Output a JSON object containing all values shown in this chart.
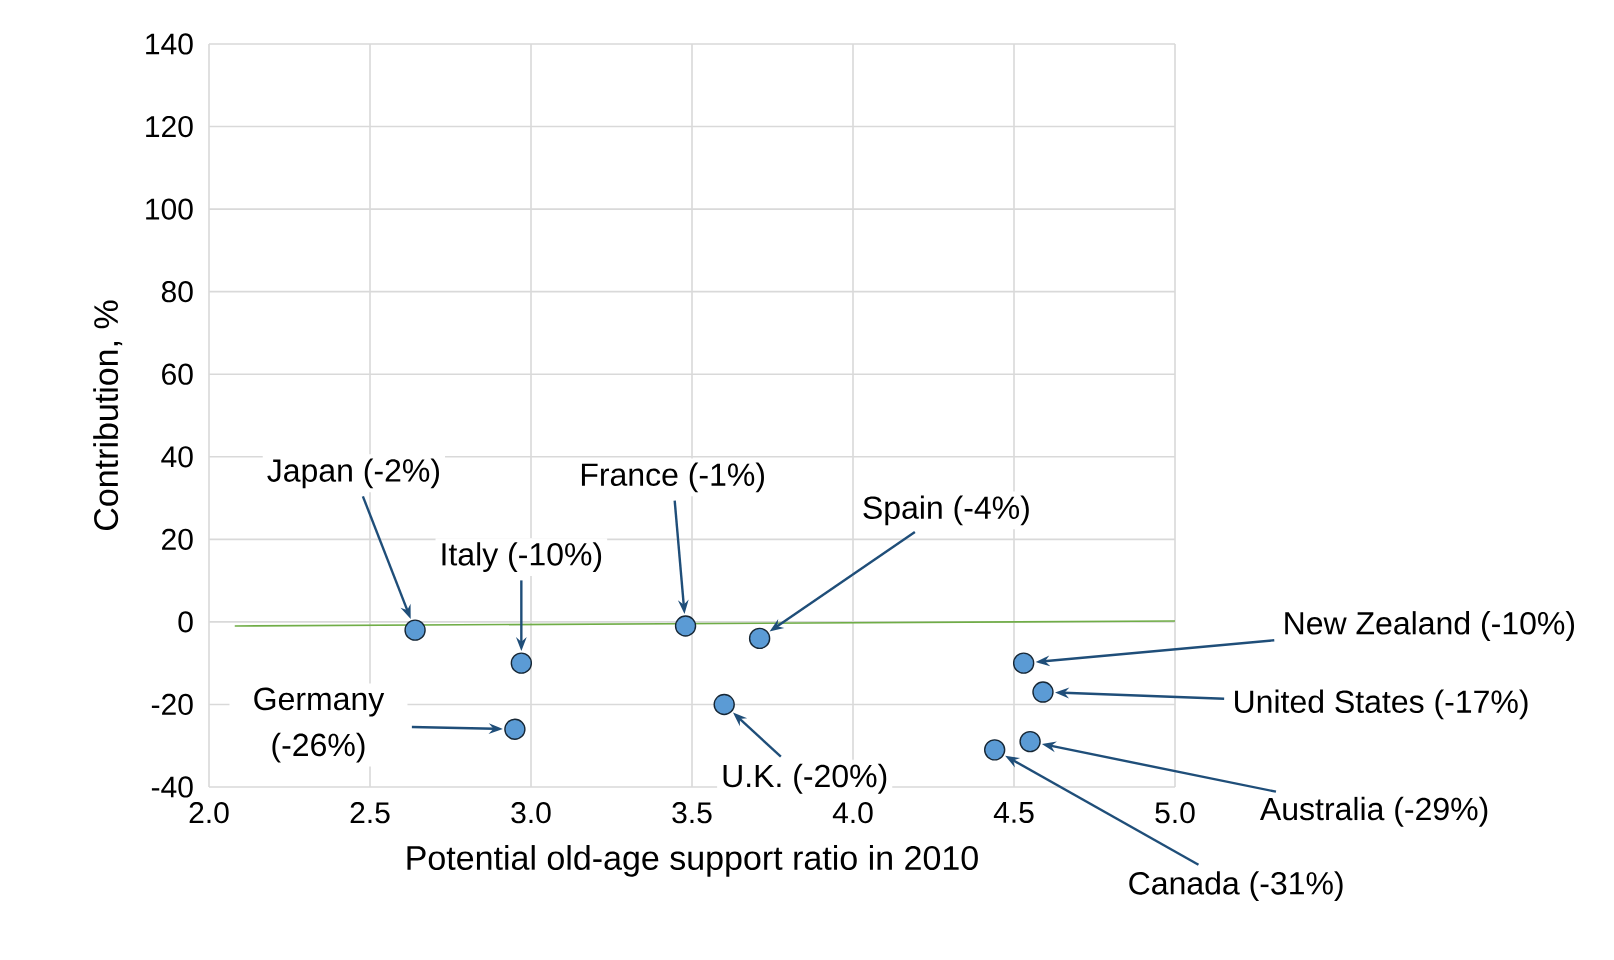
{
  "chart_data": {
    "type": "scatter",
    "xlabel": "Potential old-age support ratio in 2010",
    "ylabel": "Contribution, %",
    "xlim": [
      2.0,
      5.0
    ],
    "ylim": [
      -40,
      140
    ],
    "xticks": [
      {
        "value": 2,
        "label": "2.0"
      },
      2.5,
      {
        "value": 3,
        "label": "3.0"
      },
      3.5,
      {
        "value": 4,
        "label": "4.0"
      },
      4.5,
      {
        "value": 5,
        "label": "5.0"
      }
    ],
    "yticks": [
      -40,
      -20,
      0,
      20,
      40,
      60,
      80,
      100,
      120,
      140
    ],
    "grid": true,
    "marker": "circle",
    "series": [
      {
        "color": "#5b9bd5",
        "x": [
          2.64,
          2.97,
          2.95,
          3.48,
          3.71,
          3.6,
          4.53,
          4.59,
          4.55,
          4.44
        ],
        "values": [
          -2,
          -10,
          -26,
          -1,
          -4,
          -20,
          -10,
          -17,
          -29,
          -31
        ]
      },
      {
        "type": "line",
        "color": "#70ad47",
        "marker": "none",
        "x": [
          2.08,
          5.0
        ],
        "values": [
          -1.0,
          0.2
        ]
      }
    ],
    "annotations": [
      "Japan (-2%)",
      "Italy (-10%)",
      "Germany (-26%)",
      "France (-1%)",
      "Spain (-4%)",
      "U.K. (-20%)",
      "New Zealand (-10%)",
      "United States (-17%)",
      "Australia (-29%)",
      "Canada (-31%)"
    ]
  }
}
